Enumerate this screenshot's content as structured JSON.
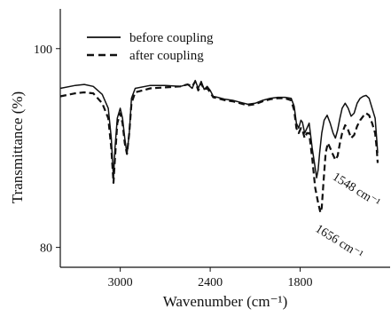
{
  "chart_data": {
    "type": "line",
    "title": "",
    "xlabel": "Wavenumber (cm⁻¹)",
    "ylabel": "Transmittance (%)",
    "xlim": [
      3400,
      1200
    ],
    "x_reversed": true,
    "ylim": [
      78,
      104
    ],
    "xticks": [
      "3000",
      "2400",
      "1800"
    ],
    "yticks": [
      "80",
      "100"
    ],
    "grid": false,
    "legend_position": "top-left",
    "annotations": [
      {
        "label": "1656 cm⁻¹",
        "x": 1656,
        "y": 84.0
      },
      {
        "label": "1548 cm⁻¹",
        "x": 1548,
        "y": 87.8
      }
    ],
    "series": [
      {
        "name": "before coupling",
        "style": "solid",
        "color": "#111111",
        "points": [
          [
            3400,
            96.0
          ],
          [
            3300,
            96.3
          ],
          [
            3240,
            96.4
          ],
          [
            3180,
            96.2
          ],
          [
            3120,
            95.4
          ],
          [
            3080,
            94.0
          ],
          [
            3060,
            91.0
          ],
          [
            3045,
            87.0
          ],
          [
            3035,
            90.0
          ],
          [
            3020,
            93.0
          ],
          [
            3000,
            94.0
          ],
          [
            2985,
            93.0
          ],
          [
            2970,
            91.0
          ],
          [
            2955,
            89.4
          ],
          [
            2940,
            91.5
          ],
          [
            2925,
            95.0
          ],
          [
            2900,
            96.0
          ],
          [
            2800,
            96.3
          ],
          [
            2700,
            96.3
          ],
          [
            2600,
            96.2
          ],
          [
            2550,
            96.4
          ],
          [
            2520,
            96.0
          ],
          [
            2500,
            96.8
          ],
          [
            2480,
            96.0
          ],
          [
            2460,
            96.7
          ],
          [
            2440,
            95.9
          ],
          [
            2420,
            96.2
          ],
          [
            2400,
            95.8
          ],
          [
            2380,
            95.2
          ],
          [
            2350,
            95.1
          ],
          [
            2300,
            94.9
          ],
          [
            2250,
            94.8
          ],
          [
            2200,
            94.6
          ],
          [
            2150,
            94.4
          ],
          [
            2100,
            94.5
          ],
          [
            2050,
            94.8
          ],
          [
            2000,
            95.0
          ],
          [
            1950,
            95.1
          ],
          [
            1900,
            95.1
          ],
          [
            1860,
            95.0
          ],
          [
            1840,
            94.2
          ],
          [
            1825,
            92.5
          ],
          [
            1810,
            92.0
          ],
          [
            1795,
            92.8
          ],
          [
            1785,
            92.6
          ],
          [
            1770,
            91.5
          ],
          [
            1755,
            92.0
          ],
          [
            1740,
            92.5
          ],
          [
            1720,
            90.0
          ],
          [
            1700,
            88.0
          ],
          [
            1690,
            87.0
          ],
          [
            1680,
            87.8
          ],
          [
            1670,
            89.5
          ],
          [
            1656,
            91.5
          ],
          [
            1640,
            92.8
          ],
          [
            1620,
            93.3
          ],
          [
            1600,
            92.5
          ],
          [
            1580,
            91.5
          ],
          [
            1565,
            91.0
          ],
          [
            1550,
            91.8
          ],
          [
            1535,
            93.0
          ],
          [
            1520,
            94.0
          ],
          [
            1500,
            94.5
          ],
          [
            1480,
            94.0
          ],
          [
            1460,
            93.2
          ],
          [
            1440,
            93.5
          ],
          [
            1420,
            94.5
          ],
          [
            1400,
            95.0
          ],
          [
            1380,
            95.2
          ],
          [
            1360,
            95.3
          ],
          [
            1340,
            95.0
          ],
          [
            1320,
            94.0
          ],
          [
            1300,
            93.0
          ],
          [
            1290,
            91.0
          ],
          [
            1283,
            89.5
          ]
        ]
      },
      {
        "name": "after coupling",
        "style": "dashed",
        "color": "#111111",
        "points": [
          [
            3400,
            95.2
          ],
          [
            3300,
            95.5
          ],
          [
            3240,
            95.6
          ],
          [
            3180,
            95.5
          ],
          [
            3120,
            94.5
          ],
          [
            3080,
            93.0
          ],
          [
            3060,
            90.0
          ],
          [
            3045,
            86.5
          ],
          [
            3035,
            89.0
          ],
          [
            3020,
            92.5
          ],
          [
            3000,
            93.5
          ],
          [
            2985,
            92.5
          ],
          [
            2970,
            90.5
          ],
          [
            2955,
            89.4
          ],
          [
            2940,
            91.5
          ],
          [
            2925,
            94.5
          ],
          [
            2900,
            95.6
          ],
          [
            2800,
            96.0
          ],
          [
            2700,
            96.1
          ],
          [
            2600,
            96.2
          ],
          [
            2550,
            96.4
          ],
          [
            2520,
            96.2
          ],
          [
            2500,
            96.7
          ],
          [
            2480,
            95.8
          ],
          [
            2460,
            96.5
          ],
          [
            2440,
            95.9
          ],
          [
            2420,
            96.0
          ],
          [
            2400,
            95.6
          ],
          [
            2380,
            95.1
          ],
          [
            2350,
            95.0
          ],
          [
            2300,
            94.8
          ],
          [
            2250,
            94.7
          ],
          [
            2200,
            94.5
          ],
          [
            2150,
            94.3
          ],
          [
            2100,
            94.4
          ],
          [
            2050,
            94.7
          ],
          [
            2000,
            94.9
          ],
          [
            1950,
            95.0
          ],
          [
            1900,
            95.0
          ],
          [
            1860,
            94.8
          ],
          [
            1840,
            93.8
          ],
          [
            1825,
            92.0
          ],
          [
            1810,
            91.5
          ],
          [
            1795,
            92.0
          ],
          [
            1785,
            91.8
          ],
          [
            1770,
            91.0
          ],
          [
            1755,
            91.5
          ],
          [
            1740,
            91.5
          ],
          [
            1720,
            89.0
          ],
          [
            1700,
            86.0
          ],
          [
            1680,
            84.5
          ],
          [
            1665,
            83.5
          ],
          [
            1656,
            84.0
          ],
          [
            1645,
            86.5
          ],
          [
            1630,
            89.5
          ],
          [
            1615,
            90.5
          ],
          [
            1600,
            90.0
          ],
          [
            1580,
            89.3
          ],
          [
            1565,
            88.8
          ],
          [
            1550,
            89.2
          ],
          [
            1535,
            90.5
          ],
          [
            1520,
            91.5
          ],
          [
            1500,
            92.3
          ],
          [
            1480,
            91.8
          ],
          [
            1460,
            91.0
          ],
          [
            1440,
            91.3
          ],
          [
            1420,
            92.2
          ],
          [
            1400,
            92.8
          ],
          [
            1380,
            93.2
          ],
          [
            1360,
            93.5
          ],
          [
            1340,
            93.3
          ],
          [
            1320,
            92.5
          ],
          [
            1300,
            91.5
          ],
          [
            1290,
            90.0
          ],
          [
            1283,
            88.5
          ]
        ]
      }
    ]
  }
}
